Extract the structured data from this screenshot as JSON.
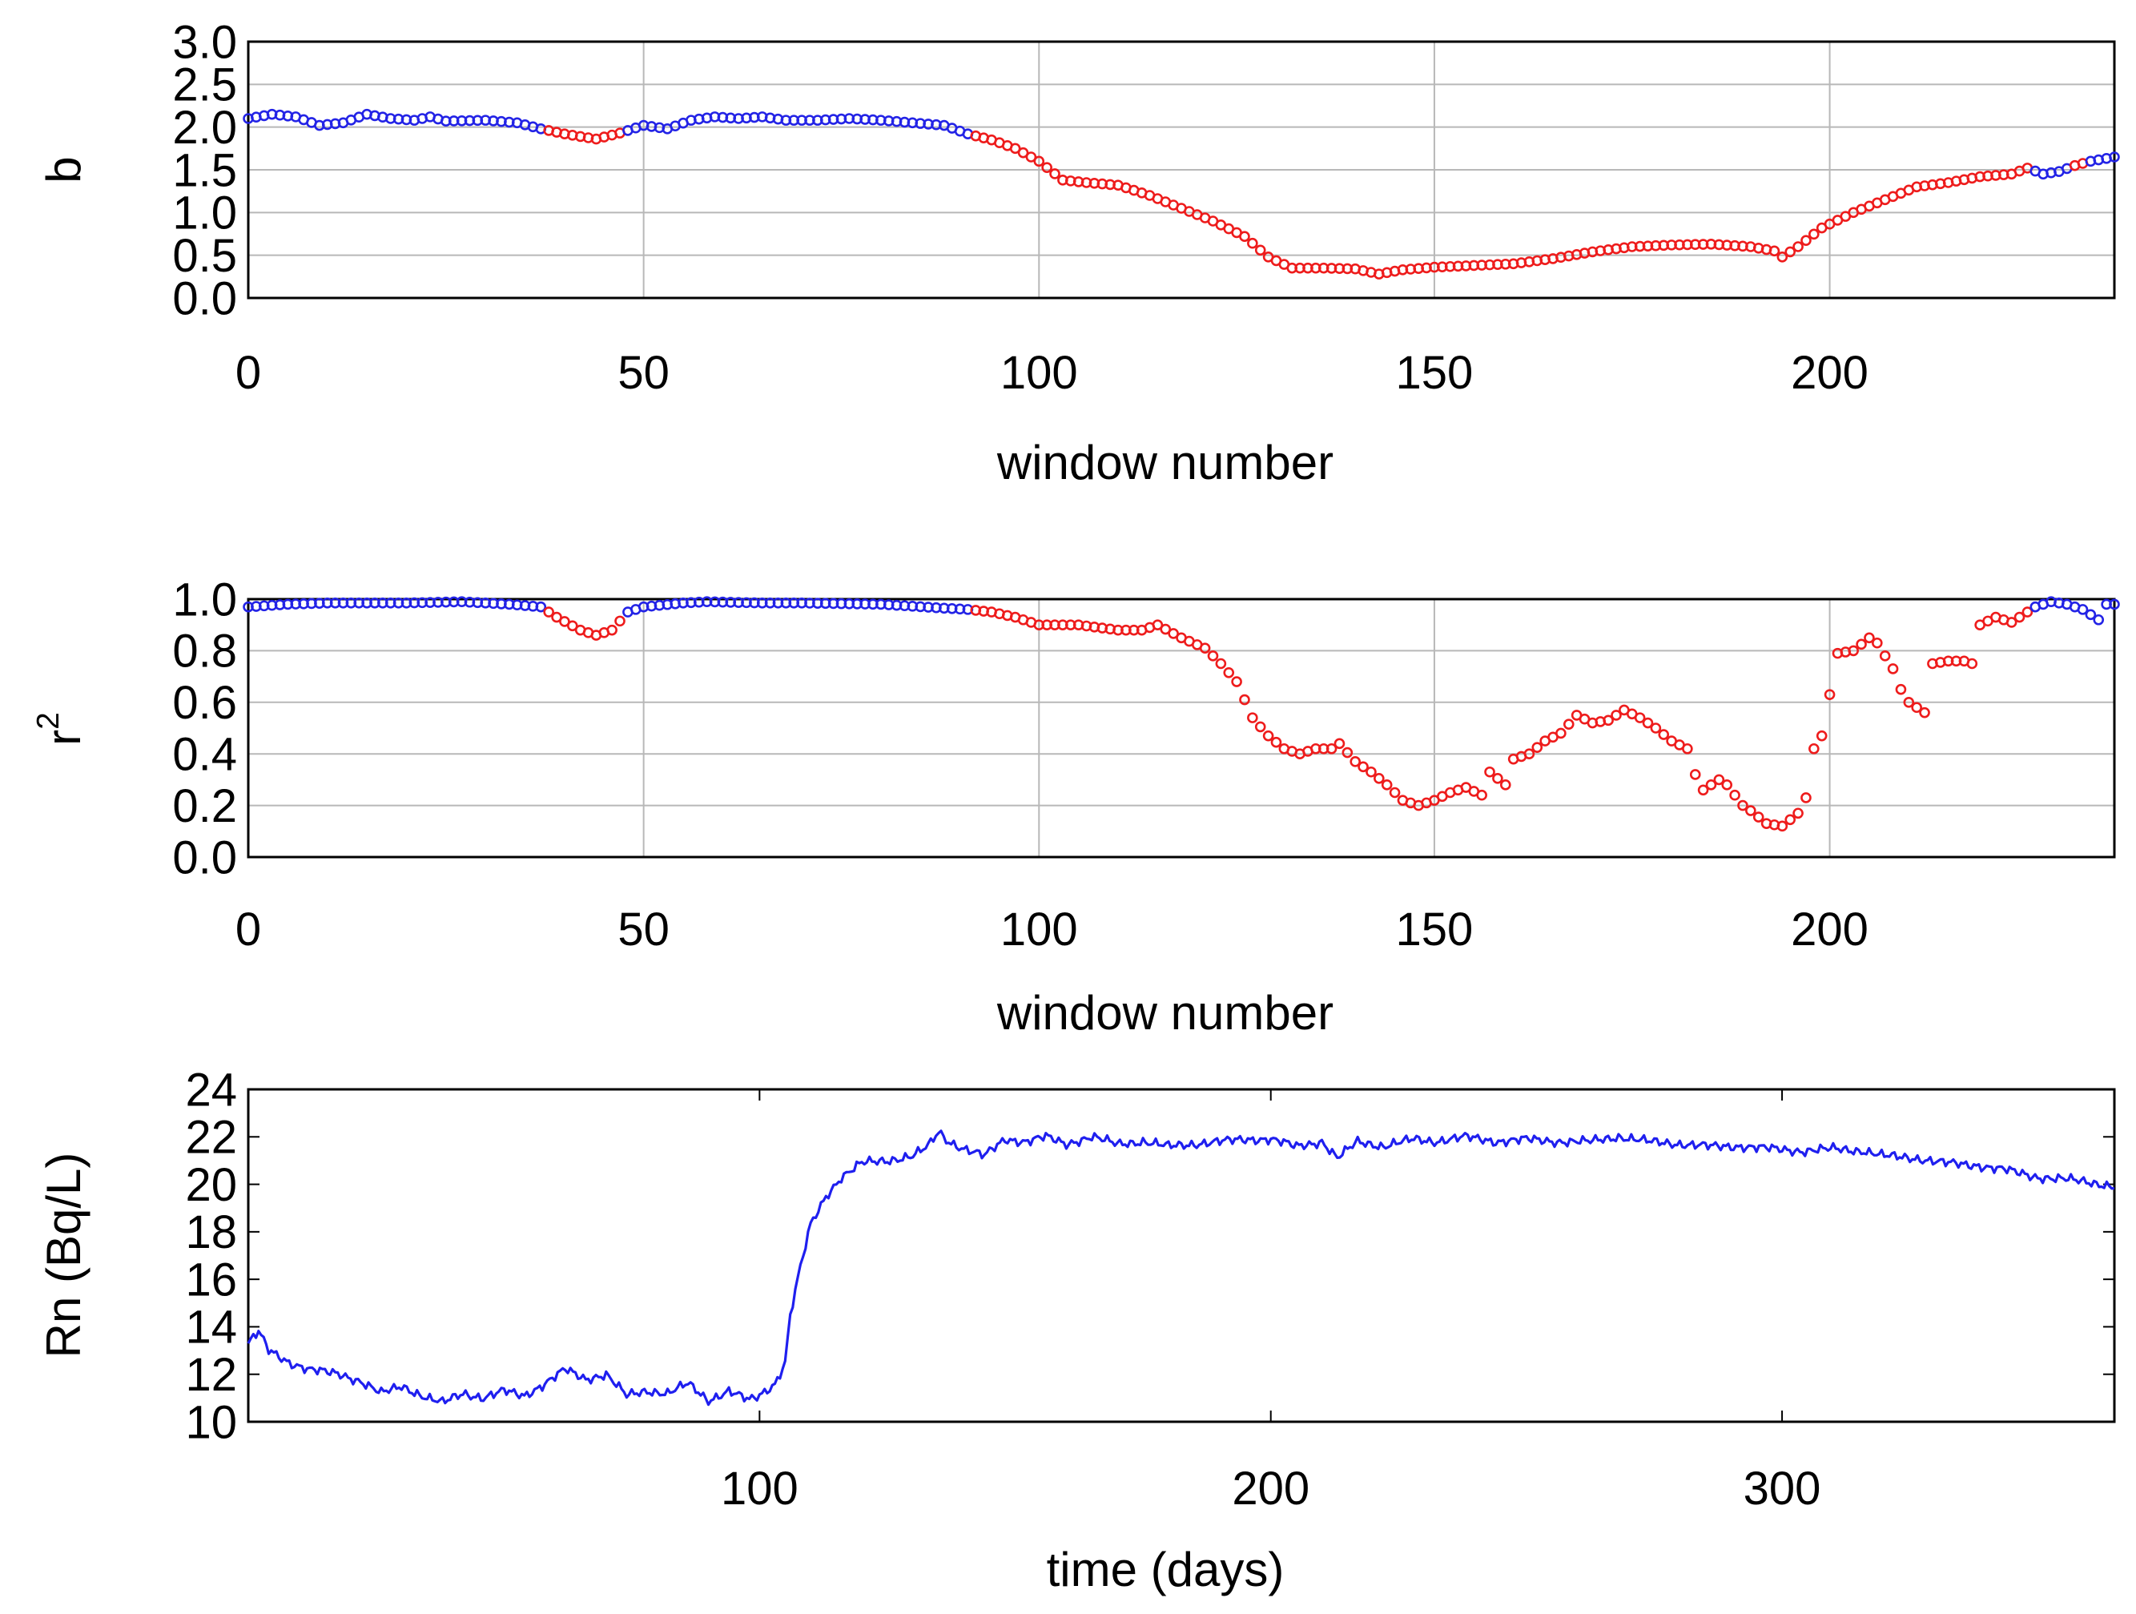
{
  "chart_data": [
    {
      "type": "scatter",
      "xlabel": "window number",
      "ylabel": "b",
      "xlim": [
        0,
        236
      ],
      "ylim": [
        0,
        3
      ],
      "xticks": [
        0,
        50,
        100,
        150,
        200
      ],
      "yticks": [
        0,
        0.5,
        1,
        1.5,
        2,
        2.5,
        3
      ],
      "ytick_labels": [
        "0.0",
        "0.5",
        "1.0",
        "1.5",
        "2.0",
        "2.5",
        "3.0"
      ],
      "grid": true,
      "marker": "open circle",
      "colors": {
        "blue": "#2323e6",
        "red": "#ee1c1c"
      },
      "segments": [
        {
          "x_start": 0,
          "x_end": 37,
          "color": "blue"
        },
        {
          "x_start": 38,
          "x_end": 47,
          "color": "red"
        },
        {
          "x_start": 48,
          "x_end": 91,
          "color": "blue"
        },
        {
          "x_start": 92,
          "x_end": 225,
          "color": "red"
        },
        {
          "x_start": 226,
          "x_end": 230,
          "color": "blue"
        },
        {
          "x_start": 231,
          "x_end": 232,
          "color": "red"
        },
        {
          "x_start": 233,
          "x_end": 236,
          "color": "blue"
        }
      ],
      "points": [
        [
          0,
          2.1
        ],
        [
          3,
          2.15
        ],
        [
          6,
          2.12
        ],
        [
          9,
          2.02
        ],
        [
          12,
          2.05
        ],
        [
          15,
          2.15
        ],
        [
          18,
          2.1
        ],
        [
          21,
          2.08
        ],
        [
          23,
          2.12
        ],
        [
          25,
          2.07
        ],
        [
          30,
          2.08
        ],
        [
          34,
          2.05
        ],
        [
          37,
          1.98
        ],
        [
          40,
          1.92
        ],
        [
          44,
          1.86
        ],
        [
          47,
          1.93
        ],
        [
          50,
          2.02
        ],
        [
          53,
          1.98
        ],
        [
          56,
          2.08
        ],
        [
          59,
          2.12
        ],
        [
          62,
          2.1
        ],
        [
          65,
          2.12
        ],
        [
          68,
          2.08
        ],
        [
          72,
          2.08
        ],
        [
          76,
          2.1
        ],
        [
          80,
          2.08
        ],
        [
          84,
          2.05
        ],
        [
          88,
          2.02
        ],
        [
          91,
          1.92
        ],
        [
          94,
          1.85
        ],
        [
          97,
          1.75
        ],
        [
          100,
          1.6
        ],
        [
          103,
          1.38
        ],
        [
          106,
          1.35
        ],
        [
          110,
          1.32
        ],
        [
          114,
          1.2
        ],
        [
          118,
          1.05
        ],
        [
          122,
          0.9
        ],
        [
          126,
          0.72
        ],
        [
          129,
          0.48
        ],
        [
          132,
          0.35
        ],
        [
          136,
          0.35
        ],
        [
          140,
          0.34
        ],
        [
          143,
          0.28
        ],
        [
          146,
          0.33
        ],
        [
          150,
          0.36
        ],
        [
          155,
          0.38
        ],
        [
          160,
          0.4
        ],
        [
          165,
          0.46
        ],
        [
          170,
          0.54
        ],
        [
          175,
          0.6
        ],
        [
          180,
          0.62
        ],
        [
          185,
          0.63
        ],
        [
          190,
          0.6
        ],
        [
          193,
          0.55
        ],
        [
          194,
          0.48
        ],
        [
          196,
          0.6
        ],
        [
          199,
          0.82
        ],
        [
          203,
          1.0
        ],
        [
          207,
          1.15
        ],
        [
          211,
          1.3
        ],
        [
          215,
          1.35
        ],
        [
          219,
          1.42
        ],
        [
          223,
          1.45
        ],
        [
          225,
          1.52
        ],
        [
          227,
          1.45
        ],
        [
          229,
          1.48
        ],
        [
          231,
          1.55
        ],
        [
          233,
          1.6
        ],
        [
          236,
          1.65
        ]
      ]
    },
    {
      "type": "scatter",
      "xlabel": "window number",
      "ylabel": "r²",
      "ylabel_base": "r",
      "ylabel_sup": "2",
      "xlim": [
        0,
        236
      ],
      "ylim": [
        0,
        1
      ],
      "xticks": [
        0,
        50,
        100,
        150,
        200
      ],
      "yticks": [
        0,
        0.2,
        0.4,
        0.6,
        0.8,
        1
      ],
      "ytick_labels": [
        "0.0",
        "0.2",
        "0.4",
        "0.6",
        "0.8",
        "1.0"
      ],
      "grid": true,
      "marker": "open circle",
      "colors": {
        "blue": "#2323e6",
        "red": "#ee1c1c"
      },
      "segments": [
        {
          "x_start": 0,
          "x_end": 37,
          "color": "blue"
        },
        {
          "x_start": 38,
          "x_end": 47,
          "color": "red"
        },
        {
          "x_start": 48,
          "x_end": 91,
          "color": "blue"
        },
        {
          "x_start": 92,
          "x_end": 225,
          "color": "red"
        },
        {
          "x_start": 226,
          "x_end": 236,
          "color": "blue"
        }
      ],
      "points": [
        [
          0,
          0.97
        ],
        [
          5,
          0.98
        ],
        [
          10,
          0.985
        ],
        [
          20,
          0.985
        ],
        [
          27,
          0.99
        ],
        [
          33,
          0.98
        ],
        [
          37,
          0.97
        ],
        [
          39,
          0.93
        ],
        [
          42,
          0.88
        ],
        [
          44,
          0.86
        ],
        [
          46,
          0.88
        ],
        [
          48,
          0.95
        ],
        [
          50,
          0.97
        ],
        [
          55,
          0.985
        ],
        [
          58,
          0.99
        ],
        [
          65,
          0.985
        ],
        [
          70,
          0.985
        ],
        [
          80,
          0.98
        ],
        [
          88,
          0.965
        ],
        [
          91,
          0.96
        ],
        [
          94,
          0.95
        ],
        [
          97,
          0.93
        ],
        [
          100,
          0.9
        ],
        [
          105,
          0.9
        ],
        [
          110,
          0.88
        ],
        [
          113,
          0.88
        ],
        [
          115,
          0.9
        ],
        [
          118,
          0.85
        ],
        [
          121,
          0.81
        ],
        [
          123,
          0.75
        ],
        [
          125,
          0.68
        ],
        [
          127,
          0.54
        ],
        [
          129,
          0.47
        ],
        [
          131,
          0.42
        ],
        [
          133,
          0.4
        ],
        [
          135,
          0.42
        ],
        [
          137,
          0.42
        ],
        [
          138,
          0.44
        ],
        [
          140,
          0.37
        ],
        [
          142,
          0.33
        ],
        [
          144,
          0.28
        ],
        [
          146,
          0.22
        ],
        [
          148,
          0.2
        ],
        [
          150,
          0.22
        ],
        [
          152,
          0.25
        ],
        [
          154,
          0.27
        ],
        [
          156,
          0.24
        ],
        [
          157,
          0.33
        ],
        [
          159,
          0.28
        ],
        [
          160,
          0.38
        ],
        [
          162,
          0.4
        ],
        [
          164,
          0.45
        ],
        [
          166,
          0.48
        ],
        [
          168,
          0.55
        ],
        [
          170,
          0.52
        ],
        [
          172,
          0.53
        ],
        [
          174,
          0.57
        ],
        [
          176,
          0.54
        ],
        [
          178,
          0.5
        ],
        [
          180,
          0.45
        ],
        [
          182,
          0.42
        ],
        [
          183,
          0.32
        ],
        [
          184,
          0.26
        ],
        [
          186,
          0.3
        ],
        [
          187,
          0.28
        ],
        [
          189,
          0.2
        ],
        [
          190,
          0.18
        ],
        [
          192,
          0.13
        ],
        [
          194,
          0.12
        ],
        [
          196,
          0.17
        ],
        [
          197,
          0.23
        ],
        [
          198,
          0.42
        ],
        [
          199,
          0.47
        ],
        [
          200,
          0.63
        ],
        [
          201,
          0.79
        ],
        [
          203,
          0.8
        ],
        [
          205,
          0.85
        ],
        [
          206,
          0.83
        ],
        [
          208,
          0.73
        ],
        [
          209,
          0.65
        ],
        [
          210,
          0.6
        ],
        [
          211,
          0.58
        ],
        [
          212,
          0.56
        ],
        [
          213,
          0.75
        ],
        [
          215,
          0.76
        ],
        [
          217,
          0.76
        ],
        [
          218,
          0.75
        ],
        [
          219,
          0.9
        ],
        [
          221,
          0.93
        ],
        [
          223,
          0.91
        ],
        [
          225,
          0.95
        ],
        [
          226,
          0.97
        ],
        [
          228,
          0.99
        ],
        [
          230,
          0.98
        ],
        [
          232,
          0.96
        ],
        [
          234,
          0.92
        ],
        [
          235,
          0.98
        ],
        [
          236,
          0.98
        ]
      ]
    },
    {
      "type": "line",
      "xlabel": "time (days)",
      "ylabel": "Rn (Bq/L)",
      "xlim": [
        0,
        365
      ],
      "ylim": [
        10,
        24
      ],
      "xticks": [
        100,
        200,
        300
      ],
      "yticks": [
        10,
        12,
        14,
        16,
        18,
        20,
        22,
        24
      ],
      "grid": false,
      "colors": {
        "line": "#1f1fef"
      },
      "points": [
        [
          0,
          13.3
        ],
        [
          2,
          13.8
        ],
        [
          4,
          13.0
        ],
        [
          8,
          12.5
        ],
        [
          12,
          12.2
        ],
        [
          18,
          12.0
        ],
        [
          22,
          11.7
        ],
        [
          26,
          11.2
        ],
        [
          30,
          11.5
        ],
        [
          35,
          11.0
        ],
        [
          38,
          10.8
        ],
        [
          42,
          11.2
        ],
        [
          46,
          11.0
        ],
        [
          50,
          11.3
        ],
        [
          54,
          11.1
        ],
        [
          58,
          11.6
        ],
        [
          62,
          12.2
        ],
        [
          66,
          11.8
        ],
        [
          70,
          12.0
        ],
        [
          74,
          11.1
        ],
        [
          78,
          11.3
        ],
        [
          82,
          11.2
        ],
        [
          86,
          11.6
        ],
        [
          90,
          10.9
        ],
        [
          94,
          11.3
        ],
        [
          98,
          10.9
        ],
        [
          100,
          11.1
        ],
        [
          103,
          11.6
        ],
        [
          105,
          12.5
        ],
        [
          106,
          14.5
        ],
        [
          108,
          16.5
        ],
        [
          110,
          18.3
        ],
        [
          113,
          19.5
        ],
        [
          116,
          20.3
        ],
        [
          120,
          20.9
        ],
        [
          125,
          21.0
        ],
        [
          130,
          21.2
        ],
        [
          133,
          21.6
        ],
        [
          135,
          22.2
        ],
        [
          137,
          21.8
        ],
        [
          140,
          21.5
        ],
        [
          144,
          21.2
        ],
        [
          148,
          21.9
        ],
        [
          152,
          21.8
        ],
        [
          156,
          22.0
        ],
        [
          160,
          21.7
        ],
        [
          165,
          22.0
        ],
        [
          170,
          21.7
        ],
        [
          175,
          21.8
        ],
        [
          180,
          21.6
        ],
        [
          185,
          21.7
        ],
        [
          190,
          21.8
        ],
        [
          195,
          21.9
        ],
        [
          200,
          21.9
        ],
        [
          205,
          21.6
        ],
        [
          210,
          21.8
        ],
        [
          213,
          21.1
        ],
        [
          217,
          21.8
        ],
        [
          222,
          21.6
        ],
        [
          228,
          21.9
        ],
        [
          232,
          21.8
        ],
        [
          238,
          22.0
        ],
        [
          244,
          21.8
        ],
        [
          250,
          21.9
        ],
        [
          256,
          21.8
        ],
        [
          262,
          21.8
        ],
        [
          268,
          22.0
        ],
        [
          274,
          21.8
        ],
        [
          280,
          21.7
        ],
        [
          286,
          21.6
        ],
        [
          292,
          21.6
        ],
        [
          298,
          21.5
        ],
        [
          304,
          21.4
        ],
        [
          310,
          21.5
        ],
        [
          316,
          21.4
        ],
        [
          320,
          21.2
        ],
        [
          326,
          21.1
        ],
        [
          332,
          20.9
        ],
        [
          338,
          20.8
        ],
        [
          344,
          20.6
        ],
        [
          350,
          20.3
        ],
        [
          356,
          20.2
        ],
        [
          360,
          20.1
        ],
        [
          365,
          19.9
        ]
      ]
    }
  ]
}
